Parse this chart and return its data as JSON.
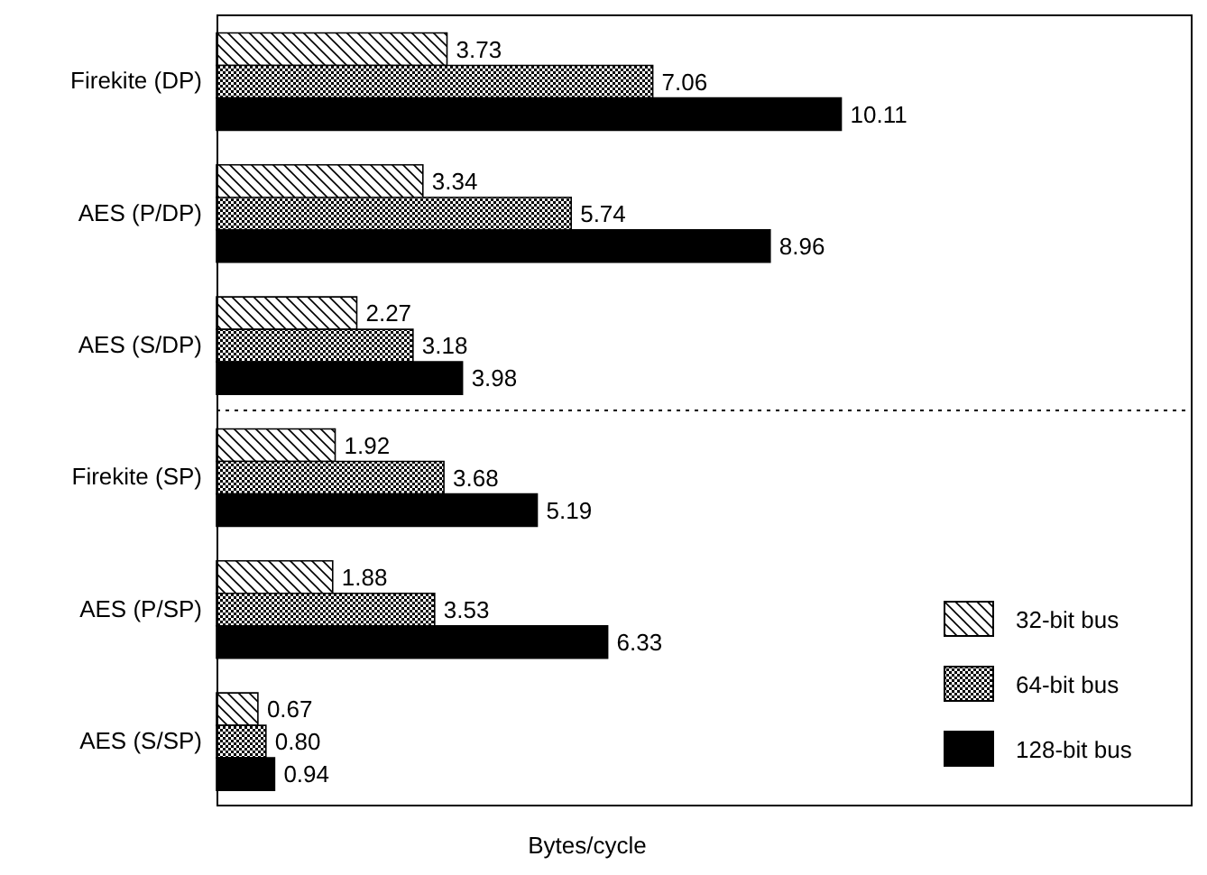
{
  "chart_data": {
    "type": "bar",
    "orientation": "horizontal",
    "xlabel": "Bytes/cycle",
    "categories": [
      "Firekite (DP)",
      "AES (P/DP)",
      "AES (S/DP)",
      "Firekite (SP)",
      "AES (P/SP)",
      "AES (S/SP)"
    ],
    "series": [
      {
        "name": "32-bit bus",
        "color": "#000000",
        "values": [
          3.73,
          3.34,
          2.27,
          1.92,
          1.88,
          0.67
        ],
        "value_labels": [
          "3.73",
          "3.34",
          "2.27",
          "1.92",
          "1.88",
          "0.67"
        ]
      },
      {
        "name": "64-bit bus",
        "color": "#000000",
        "values": [
          7.06,
          5.74,
          3.18,
          3.68,
          3.53,
          0.8
        ],
        "value_labels": [
          "7.06",
          "5.74",
          "3.18",
          "3.68",
          "3.53",
          "0.80"
        ]
      },
      {
        "name": "128-bit bus",
        "color": "#000000",
        "values": [
          10.11,
          8.96,
          3.98,
          5.19,
          6.33,
          0.94
        ],
        "value_labels": [
          "10.11",
          "8.96",
          "3.98",
          "5.19",
          "6.33",
          "0.94"
        ]
      }
    ],
    "tick_labels": "y",
    "legend": "bottom right"
  }
}
